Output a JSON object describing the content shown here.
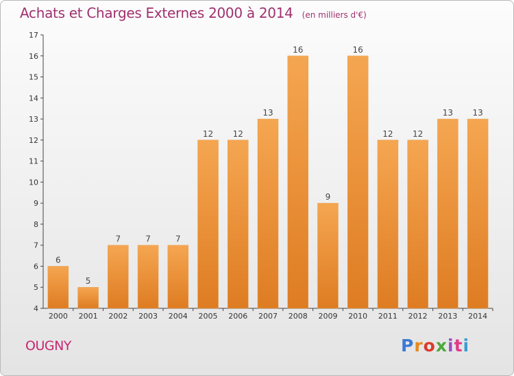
{
  "title": "Achats et Charges Externes 2000 à 2014",
  "unit": "(en milliers d'€)",
  "commune": "OUGNY",
  "logo": {
    "text": "Proxiti",
    "letter_colors": [
      "#3a7ad5",
      "#e8891e",
      "#d93a2b",
      "#4fa83a",
      "#9a4fc2",
      "#e03a8a",
      "#3a9ad5"
    ]
  },
  "colors": {
    "title": "#a0306f",
    "commune": "#c8266f",
    "bar_top": "#f5a651",
    "bar_bottom": "#de7c22",
    "axis": "#444444"
  },
  "chart_data": {
    "type": "bar",
    "categories": [
      "2000",
      "2001",
      "2002",
      "2003",
      "2004",
      "2005",
      "2006",
      "2007",
      "2008",
      "2009",
      "2010",
      "2011",
      "2012",
      "2013",
      "2014"
    ],
    "values": [
      6,
      5,
      7,
      7,
      7,
      12,
      12,
      13,
      16,
      9,
      16,
      12,
      12,
      13,
      13
    ],
    "title": "Achats et Charges Externes 2000 à 2014",
    "xlabel": "",
    "ylabel": "",
    "ylim": [
      4,
      17
    ],
    "yticks": [
      4,
      5,
      6,
      7,
      8,
      9,
      10,
      11,
      12,
      13,
      14,
      15,
      16,
      17
    ],
    "grid": false,
    "data_labels": true
  }
}
